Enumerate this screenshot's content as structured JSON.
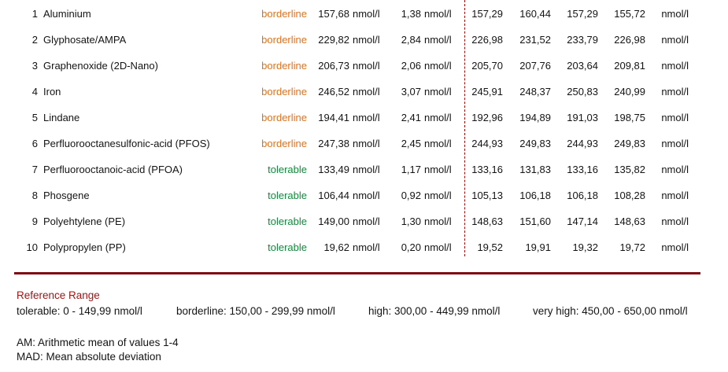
{
  "colors": {
    "status_borderline": "#E2711B",
    "status_tolerable": "#0E8C3A",
    "section_rule": "#7D0A10",
    "reference_title": "#A31515",
    "values_divider": "#A51212",
    "body_text": "#141414"
  },
  "table": {
    "unit": "nmol/l",
    "rows": [
      {
        "num": "1",
        "name": "Aluminium",
        "status": "borderline",
        "am": "157,68",
        "mad": "1,38",
        "v1": "157,29",
        "v2": "160,44",
        "v3": "157,29",
        "v4": "155,72"
      },
      {
        "num": "2",
        "name": "Glyphosate/AMPA",
        "status": "borderline",
        "am": "229,82",
        "mad": "2,84",
        "v1": "226,98",
        "v2": "231,52",
        "v3": "233,79",
        "v4": "226,98"
      },
      {
        "num": "3",
        "name": "Graphenoxide (2D-Nano)",
        "status": "borderline",
        "am": "206,73",
        "mad": "2,06",
        "v1": "205,70",
        "v2": "207,76",
        "v3": "203,64",
        "v4": "209,81"
      },
      {
        "num": "4",
        "name": "Iron",
        "status": "borderline",
        "am": "246,52",
        "mad": "3,07",
        "v1": "245,91",
        "v2": "248,37",
        "v3": "250,83",
        "v4": "240,99"
      },
      {
        "num": "5",
        "name": "Lindane",
        "status": "borderline",
        "am": "194,41",
        "mad": "2,41",
        "v1": "192,96",
        "v2": "194,89",
        "v3": "191,03",
        "v4": "198,75"
      },
      {
        "num": "6",
        "name": "Perfluorooctanesulfonic-acid (PFOS)",
        "status": "borderline",
        "am": "247,38",
        "mad": "2,45",
        "v1": "244,93",
        "v2": "249,83",
        "v3": "244,93",
        "v4": "249,83"
      },
      {
        "num": "7",
        "name": "Perfluorooctanoic-acid (PFOA)",
        "status": "tolerable",
        "am": "133,49",
        "mad": "1,17",
        "v1": "133,16",
        "v2": "131,83",
        "v3": "133,16",
        "v4": "135,82"
      },
      {
        "num": "8",
        "name": "Phosgene",
        "status": "tolerable",
        "am": "106,44",
        "mad": "0,92",
        "v1": "105,13",
        "v2": "106,18",
        "v3": "106,18",
        "v4": "108,28"
      },
      {
        "num": "9",
        "name": "Polyehtylene (PE)",
        "status": "tolerable",
        "am": "149,00",
        "mad": "1,30",
        "v1": "148,63",
        "v2": "151,60",
        "v3": "147,14",
        "v4": "148,63"
      },
      {
        "num": "10",
        "name": "Polypropylen (PP)",
        "status": "tolerable",
        "am": "19,62",
        "mad": "0,20",
        "v1": "19,52",
        "v2": "19,91",
        "v3": "19,32",
        "v4": "19,72"
      }
    ]
  },
  "reference": {
    "title": "Reference Range",
    "ranges": [
      "tolerable: 0 - 149,99 nmol/l",
      "borderline: 150,00 - 299,99 nmol/l",
      "high: 300,00 - 449,99 nmol/l",
      "very high: 450,00 - 650,00 nmol/l"
    ]
  },
  "legend": {
    "am": "AM: Arithmetic mean of values 1-4",
    "mad": "MAD: Mean absolute deviation"
  }
}
